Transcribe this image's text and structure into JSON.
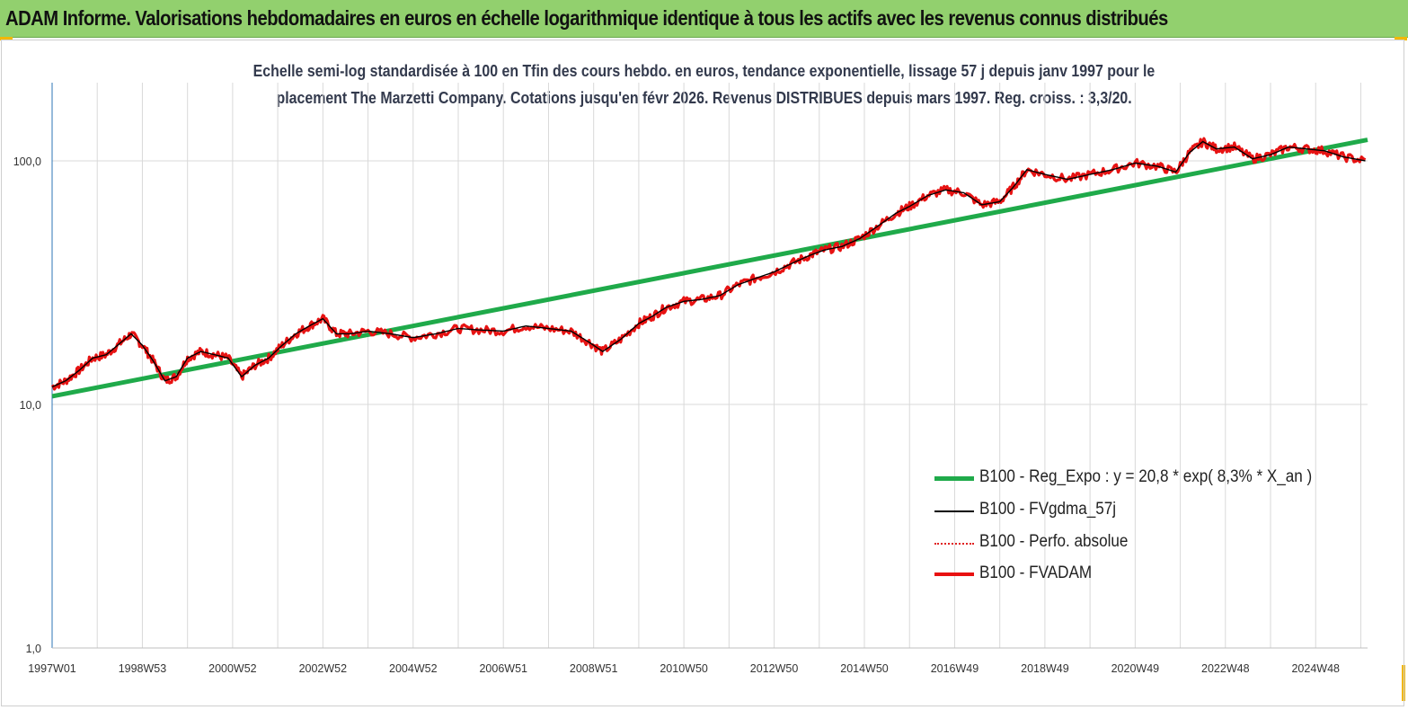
{
  "banner": {
    "title": "ADAM Informe. Valorisations hebdomadaires en euros en échelle logarithmique identique à tous les actifs avec les revenus connus distribués"
  },
  "chart_data": {
    "type": "line",
    "title_line1": "Echelle semi-log standardisée à 100 en Tfin des cours hebdo. en euros, tendance exponentielle, lissage 57 j depuis janv 1997 pour le",
    "title_line2": "placement The  Marzetti Company. Cotations jusqu'en févr 2026. Revenus DISTRIBUES depuis mars 1997. Reg. croiss. : 3,3/20.",
    "y_scale": "log",
    "ylim": [
      1,
      200
    ],
    "y_ticks": [
      "1,0",
      "10,0",
      "100,0"
    ],
    "x_tick_labels": [
      "1997W01",
      "1998W53",
      "2000W52",
      "2002W52",
      "2004W52",
      "2006W51",
      "2008W51",
      "2010W50",
      "2012W50",
      "2014W50",
      "2016W49",
      "2018W49",
      "2020W49",
      "2022W48",
      "2024W48"
    ],
    "grid": "vertical",
    "legend_position": "lower-right",
    "series": [
      {
        "name": "B100 - Reg_Expo : y = 20,8 *  exp( 8,3% *  X_an )",
        "color": "#1faa4a",
        "style": "thick",
        "x": [
          1997.0,
          2026.15
        ],
        "y": [
          10.8,
          122.0
        ]
      },
      {
        "name": "B100 - FVgdma_57j",
        "color": "#000000",
        "style": "thin",
        "x": [],
        "y": []
      },
      {
        "name": "B100 - Perfo. absolue",
        "color": "#e02020",
        "style": "dotted",
        "x": [],
        "y": []
      },
      {
        "name": "B100 - FVADAM",
        "color": "#e81010",
        "style": "thick",
        "x": [
          1997.0,
          1997.3,
          1997.6,
          1997.9,
          1998.2,
          1998.5,
          1998.75,
          1999.0,
          1999.25,
          1999.5,
          1999.75,
          2000.0,
          2000.3,
          2000.6,
          2000.9,
          2001.2,
          2001.5,
          2001.8,
          2002.1,
          2002.4,
          2002.7,
          2003.0,
          2003.3,
          2003.6,
          2004.0,
          2004.5,
          2005.0,
          2005.5,
          2006.0,
          2006.5,
          2007.0,
          2007.5,
          2008.0,
          2008.5,
          2008.9,
          2009.2,
          2009.6,
          2010.0,
          2010.3,
          2010.6,
          2011.0,
          2011.4,
          2011.8,
          2012.2,
          2012.6,
          2013.0,
          2013.4,
          2013.8,
          2014.1,
          2014.5,
          2014.9,
          2015.3,
          2015.7,
          2016.0,
          2016.4,
          2016.8,
          2017.2,
          2017.6,
          2018.0,
          2018.3,
          2018.6,
          2019.0,
          2019.5,
          2020.0,
          2020.5,
          2021.0,
          2021.5,
          2021.9,
          2022.2,
          2022.5,
          2022.8,
          2023.2,
          2023.6,
          2024.0,
          2024.4,
          2024.8,
          2025.2,
          2025.6,
          2026.1
        ],
        "y": [
          11.8,
          12.5,
          13.8,
          15.5,
          16.0,
          17.8,
          19.5,
          17.5,
          15.0,
          12.5,
          13.0,
          15.5,
          16.5,
          16.0,
          15.5,
          13.0,
          14.5,
          15.5,
          17.5,
          19.5,
          21.0,
          22.5,
          19.5,
          19.5,
          20.0,
          19.5,
          18.8,
          19.5,
          20.5,
          20.2,
          20.0,
          21.0,
          20.5,
          20.0,
          18.0,
          16.5,
          18.5,
          21.5,
          23.0,
          25.0,
          26.5,
          27.0,
          28.0,
          31.0,
          33.0,
          35.0,
          38.0,
          41.0,
          43.0,
          44.5,
          48.0,
          54.0,
          61.0,
          65.0,
          72.0,
          76.0,
          74.0,
          66.0,
          68.0,
          78.0,
          92.0,
          88.0,
          84.0,
          88.0,
          92.0,
          98.0,
          95.0,
          90.0,
          108.0,
          120.0,
          112.0,
          114.0,
          102.0,
          106.0,
          114.0,
          112.0,
          110.0,
          104.0,
          100.0
        ]
      }
    ]
  }
}
